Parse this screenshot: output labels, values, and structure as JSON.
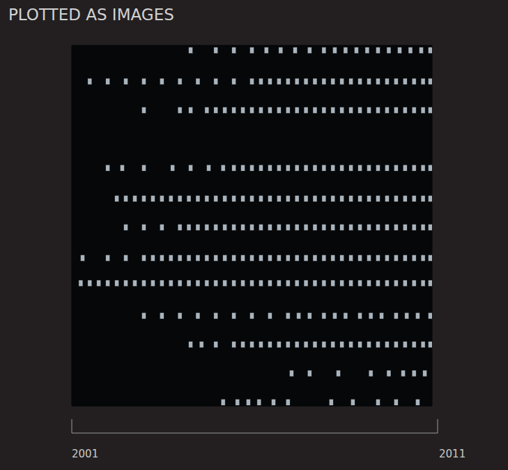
{
  "chart_data": {
    "type": "scatter",
    "title": "PLOTTED AS IMAGES",
    "color": "#aab4bc",
    "marker": "square",
    "grid": false,
    "tick_labels": "x",
    "xlim": [
      2001,
      2011
    ],
    "xticks": [
      2001,
      2011
    ],
    "ylim": [
      0,
      100
    ],
    "yticks": [],
    "x": [
      2004.3,
      2005.0,
      2005.5,
      2006.0,
      2006.4,
      2006.8,
      2007.2,
      2007.6,
      2008.0,
      2008.3,
      2008.6,
      2008.9,
      2009.2,
      2009.5,
      2009.8,
      2010.1,
      2010.4,
      2010.7,
      2010.95,
      2001.5,
      2002.0,
      2002.5,
      2003.0,
      2003.5,
      2004.0,
      2004.5,
      2005.0,
      2005.5,
      2006.0,
      2006.25,
      2006.5,
      2006.75,
      2007,
      2007.25,
      2007.5,
      2007.75,
      2008,
      2008.25,
      2008.5,
      2008.75,
      2009,
      2009.25,
      2009.5,
      2009.75,
      2010,
      2010.25,
      2010.5,
      2010.75,
      2010.95,
      2003.0,
      2004.0,
      2004.3,
      2004.75,
      2005,
      2005.25,
      2005.5,
      2005.75,
      2006,
      2006.25,
      2006.5,
      2006.75,
      2007,
      2007.25,
      2007.5,
      2007.75,
      2008,
      2008.25,
      2008.5,
      2008.75,
      2009,
      2009.25,
      2009.5,
      2009.75,
      2010,
      2010.25,
      2010.5,
      2010.75,
      2010.95,
      2002.0,
      2002.4,
      2003.0,
      2003.8,
      2004.3,
      2004.8,
      2005.2,
      2005.5,
      2005.75,
      2006,
      2006.25,
      2006.5,
      2006.75,
      2007,
      2007.25,
      2007.5,
      2007.75,
      2008,
      2008.25,
      2008.5,
      2008.75,
      2009,
      2009.25,
      2009.5,
      2009.75,
      2010,
      2010.25,
      2010.5,
      2010.75,
      2010.95,
      2002.25,
      2002.5,
      2002.75,
      2003,
      2003.25,
      2003.5,
      2003.75,
      2004,
      2004.25,
      2004.5,
      2004.75,
      2005,
      2005.25,
      2005.5,
      2005.75,
      2006,
      2006.25,
      2006.5,
      2006.75,
      2007,
      2007.25,
      2007.5,
      2007.75,
      2008,
      2008.25,
      2008.5,
      2008.75,
      2009,
      2009.25,
      2009.5,
      2009.75,
      2010,
      2010.25,
      2010.5,
      2010.75,
      2010.95,
      2002.5,
      2003,
      2003.5,
      2004,
      2004.25,
      2004.5,
      2004.75,
      2005,
      2005.25,
      2005.5,
      2005.75,
      2006,
      2006.25,
      2006.5,
      2006.75,
      2007,
      2007.25,
      2007.5,
      2007.75,
      2008,
      2008.25,
      2008.5,
      2008.75,
      2009,
      2009.25,
      2009.5,
      2009.75,
      2010,
      2010.25,
      2010.5,
      2010.75,
      2010.95,
      2001.3,
      2002,
      2002.5,
      2003,
      2003.25,
      2003.5,
      2003.75,
      2004,
      2004.25,
      2004.5,
      2004.75,
      2005,
      2005.25,
      2005.5,
      2005.75,
      2006,
      2006.25,
      2006.5,
      2006.75,
      2007,
      2007.25,
      2007.5,
      2007.75,
      2008,
      2008.25,
      2008.5,
      2008.75,
      2009,
      2009.25,
      2009.5,
      2009.75,
      2010,
      2010.25,
      2010.5,
      2010.75,
      2010.95,
      2001.25,
      2001.5,
      2001.75,
      2002,
      2002.25,
      2002.5,
      2002.75,
      2003,
      2003.25,
      2003.5,
      2003.75,
      2004,
      2004.25,
      2004.5,
      2004.75,
      2005,
      2005.25,
      2005.5,
      2005.75,
      2006,
      2006.25,
      2006.5,
      2006.75,
      2007,
      2007.25,
      2007.5,
      2007.75,
      2008,
      2008.25,
      2008.5,
      2008.75,
      2009,
      2009.25,
      2009.5,
      2009.75,
      2010,
      2010.25,
      2010.5,
      2010.75,
      2010.95,
      2003.0,
      2003.5,
      2004.0,
      2004.5,
      2005.0,
      2005.5,
      2006.0,
      2006.5,
      2007.0,
      2007.3,
      2007.6,
      2008.0,
      2008.3,
      2008.6,
      2009.0,
      2009.3,
      2009.6,
      2010.0,
      2010.3,
      2010.6,
      2010.95,
      2004.3,
      2004.6,
      2005.0,
      2005.5,
      2005.75,
      2006,
      2006.25,
      2006.5,
      2006.75,
      2007,
      2007.25,
      2007.5,
      2007.75,
      2008,
      2008.25,
      2008.5,
      2008.75,
      2009,
      2009.25,
      2009.5,
      2009.75,
      2010,
      2010.25,
      2010.5,
      2010.75,
      2010.95,
      2007.1,
      2007.6,
      2008.4,
      2009.3,
      2009.8,
      2010.2,
      2010.5,
      2010.8,
      2005.2,
      2005.6,
      2005.9,
      2006.2,
      2006.6,
      2007.0,
      2008.2,
      2008.8,
      2009.5,
      2010.0,
      2010.6
    ],
    "values": [
      98.6,
      98.6,
      98.6,
      98.6,
      98.6,
      98.6,
      98.6,
      98.6,
      98.6,
      98.6,
      98.6,
      98.6,
      98.6,
      98.6,
      98.6,
      98.6,
      98.6,
      98.6,
      98.6,
      90,
      90,
      90,
      90,
      90,
      90,
      90,
      90,
      90,
      90,
      90,
      90,
      90,
      90,
      90,
      90,
      90,
      90,
      90,
      90,
      90,
      90,
      90,
      90,
      90,
      90,
      90,
      90,
      90,
      90,
      82,
      82,
      82,
      82,
      82,
      82,
      82,
      82,
      82,
      82,
      82,
      82,
      82,
      82,
      82,
      82,
      82,
      82,
      82,
      82,
      82,
      82,
      82,
      82,
      82,
      82,
      82,
      82,
      82,
      66,
      66,
      66,
      66,
      66,
      66,
      66,
      66,
      66,
      66,
      66,
      66,
      66,
      66,
      66,
      66,
      66,
      66,
      66,
      66,
      66,
      66,
      66,
      66,
      66,
      66,
      66,
      66,
      66,
      66,
      57.5,
      57.5,
      57.5,
      57.5,
      57.5,
      57.5,
      57.5,
      57.5,
      57.5,
      57.5,
      57.5,
      57.5,
      57.5,
      57.5,
      57.5,
      57.5,
      57.5,
      57.5,
      57.5,
      57.5,
      57.5,
      57.5,
      57.5,
      57.5,
      57.5,
      57.5,
      57.5,
      57.5,
      57.5,
      57.5,
      57.5,
      57.5,
      57.5,
      57.5,
      57.5,
      57.5,
      49.5,
      49.5,
      49.5,
      49.5,
      49.5,
      49.5,
      49.5,
      49.5,
      49.5,
      49.5,
      49.5,
      49.5,
      49.5,
      49.5,
      49.5,
      49.5,
      49.5,
      49.5,
      49.5,
      49.5,
      49.5,
      49.5,
      49.5,
      49.5,
      49.5,
      49.5,
      49.5,
      49.5,
      49.5,
      49.5,
      49.5,
      49.5,
      41,
      41,
      41,
      41,
      41,
      41,
      41,
      41,
      41,
      41,
      41,
      41,
      41,
      41,
      41,
      41,
      41,
      41,
      41,
      41,
      41,
      41,
      41,
      41,
      41,
      41,
      41,
      41,
      41,
      41,
      41,
      41,
      41,
      41,
      41,
      41,
      34,
      34,
      34,
      34,
      34,
      34,
      34,
      34,
      34,
      34,
      34,
      34,
      34,
      34,
      34,
      34,
      34,
      34,
      34,
      34,
      34,
      34,
      34,
      34,
      34,
      34,
      34,
      34,
      34,
      34,
      34,
      34,
      34,
      34,
      34,
      34,
      34,
      34,
      34,
      34,
      25,
      25,
      25,
      25,
      25,
      25,
      25,
      25,
      25,
      25,
      25,
      25,
      25,
      25,
      25,
      25,
      25,
      25,
      25,
      25,
      25,
      17,
      17,
      17,
      17,
      17,
      17,
      17,
      17,
      17,
      17,
      17,
      17,
      17,
      17,
      17,
      17,
      17,
      17,
      17,
      17,
      17,
      17,
      17,
      17,
      17,
      17,
      9,
      9,
      9,
      9,
      9,
      9,
      9,
      9,
      1,
      1,
      1,
      1,
      1,
      1,
      1,
      1,
      1,
      1,
      1
    ]
  }
}
